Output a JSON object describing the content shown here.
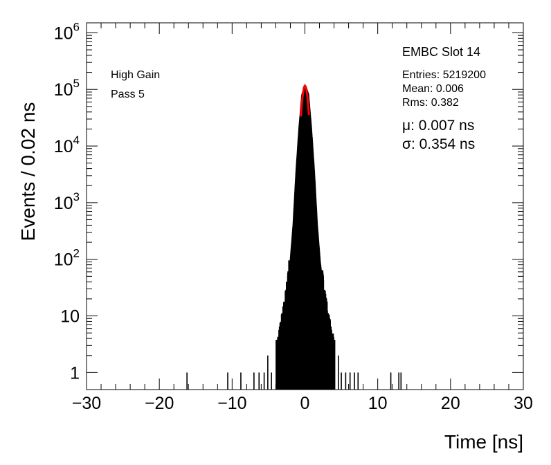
{
  "chart_data": {
    "type": "line",
    "title": "EMBC Slot 14",
    "xlabel": "Time [ns]",
    "ylabel": "Events / 0.02 ns",
    "xlim": [
      -30,
      30
    ],
    "ylim": [
      0.5,
      1500000
    ],
    "y_scale": "log",
    "grid": false,
    "x_ticks": [
      -30,
      -20,
      -10,
      0,
      10,
      20,
      30
    ],
    "x_tick_labels": [
      "−30",
      "−20",
      "−10",
      "0",
      "10",
      "20",
      "30"
    ],
    "y_ticks": [
      1,
      10,
      100,
      1000,
      10000,
      100000,
      1000000
    ],
    "y_tick_labels": [
      {
        "base": "1",
        "exp": ""
      },
      {
        "base": "10",
        "exp": ""
      },
      {
        "base": "10",
        "exp": "2"
      },
      {
        "base": "10",
        "exp": "3"
      },
      {
        "base": "10",
        "exp": "4"
      },
      {
        "base": "10",
        "exp": "5"
      },
      {
        "base": "10",
        "exp": "6"
      }
    ],
    "annotations": {
      "gain": "High Gain",
      "pass": "Pass 5",
      "entries": "Entries: 5219200",
      "mean": "Mean: 0.006",
      "rms": "Rms: 0.382",
      "mu": "μ: 0.007 ns",
      "sigma": "σ: 0.354 ns"
    },
    "series": [
      {
        "kind": "histogram",
        "color": "#000000",
        "x": [
          -4.0,
          -3.6,
          -3.2,
          -2.8,
          -2.4,
          -2.0,
          -1.6,
          -1.2,
          -0.8,
          -0.4,
          0.0,
          0.4,
          0.8,
          1.2,
          1.6,
          2.0,
          2.4,
          2.8,
          3.2,
          3.6,
          4.0
        ],
        "y": [
          2,
          3,
          6,
          12,
          30,
          90,
          400,
          3500,
          20000,
          80000,
          115000,
          80000,
          20000,
          3500,
          400,
          90,
          30,
          12,
          6,
          3,
          2
        ],
        "sparse_x": [
          -16.2,
          -10.6,
          -8.8,
          -7.0,
          -6.3,
          -5.6,
          -5.1,
          -4.6,
          4.6,
          5.0,
          5.6,
          6.2,
          6.8,
          7.3,
          11.8,
          12.9,
          13.2
        ],
        "sparse_y": [
          1,
          1,
          1,
          1,
          1,
          1,
          2,
          1,
          2,
          1,
          1,
          1,
          1,
          1,
          1,
          1,
          1
        ]
      },
      {
        "kind": "fit",
        "color": "#ff0000",
        "mu": 0.007,
        "sigma": 0.354,
        "amplitude": 115000
      }
    ]
  }
}
